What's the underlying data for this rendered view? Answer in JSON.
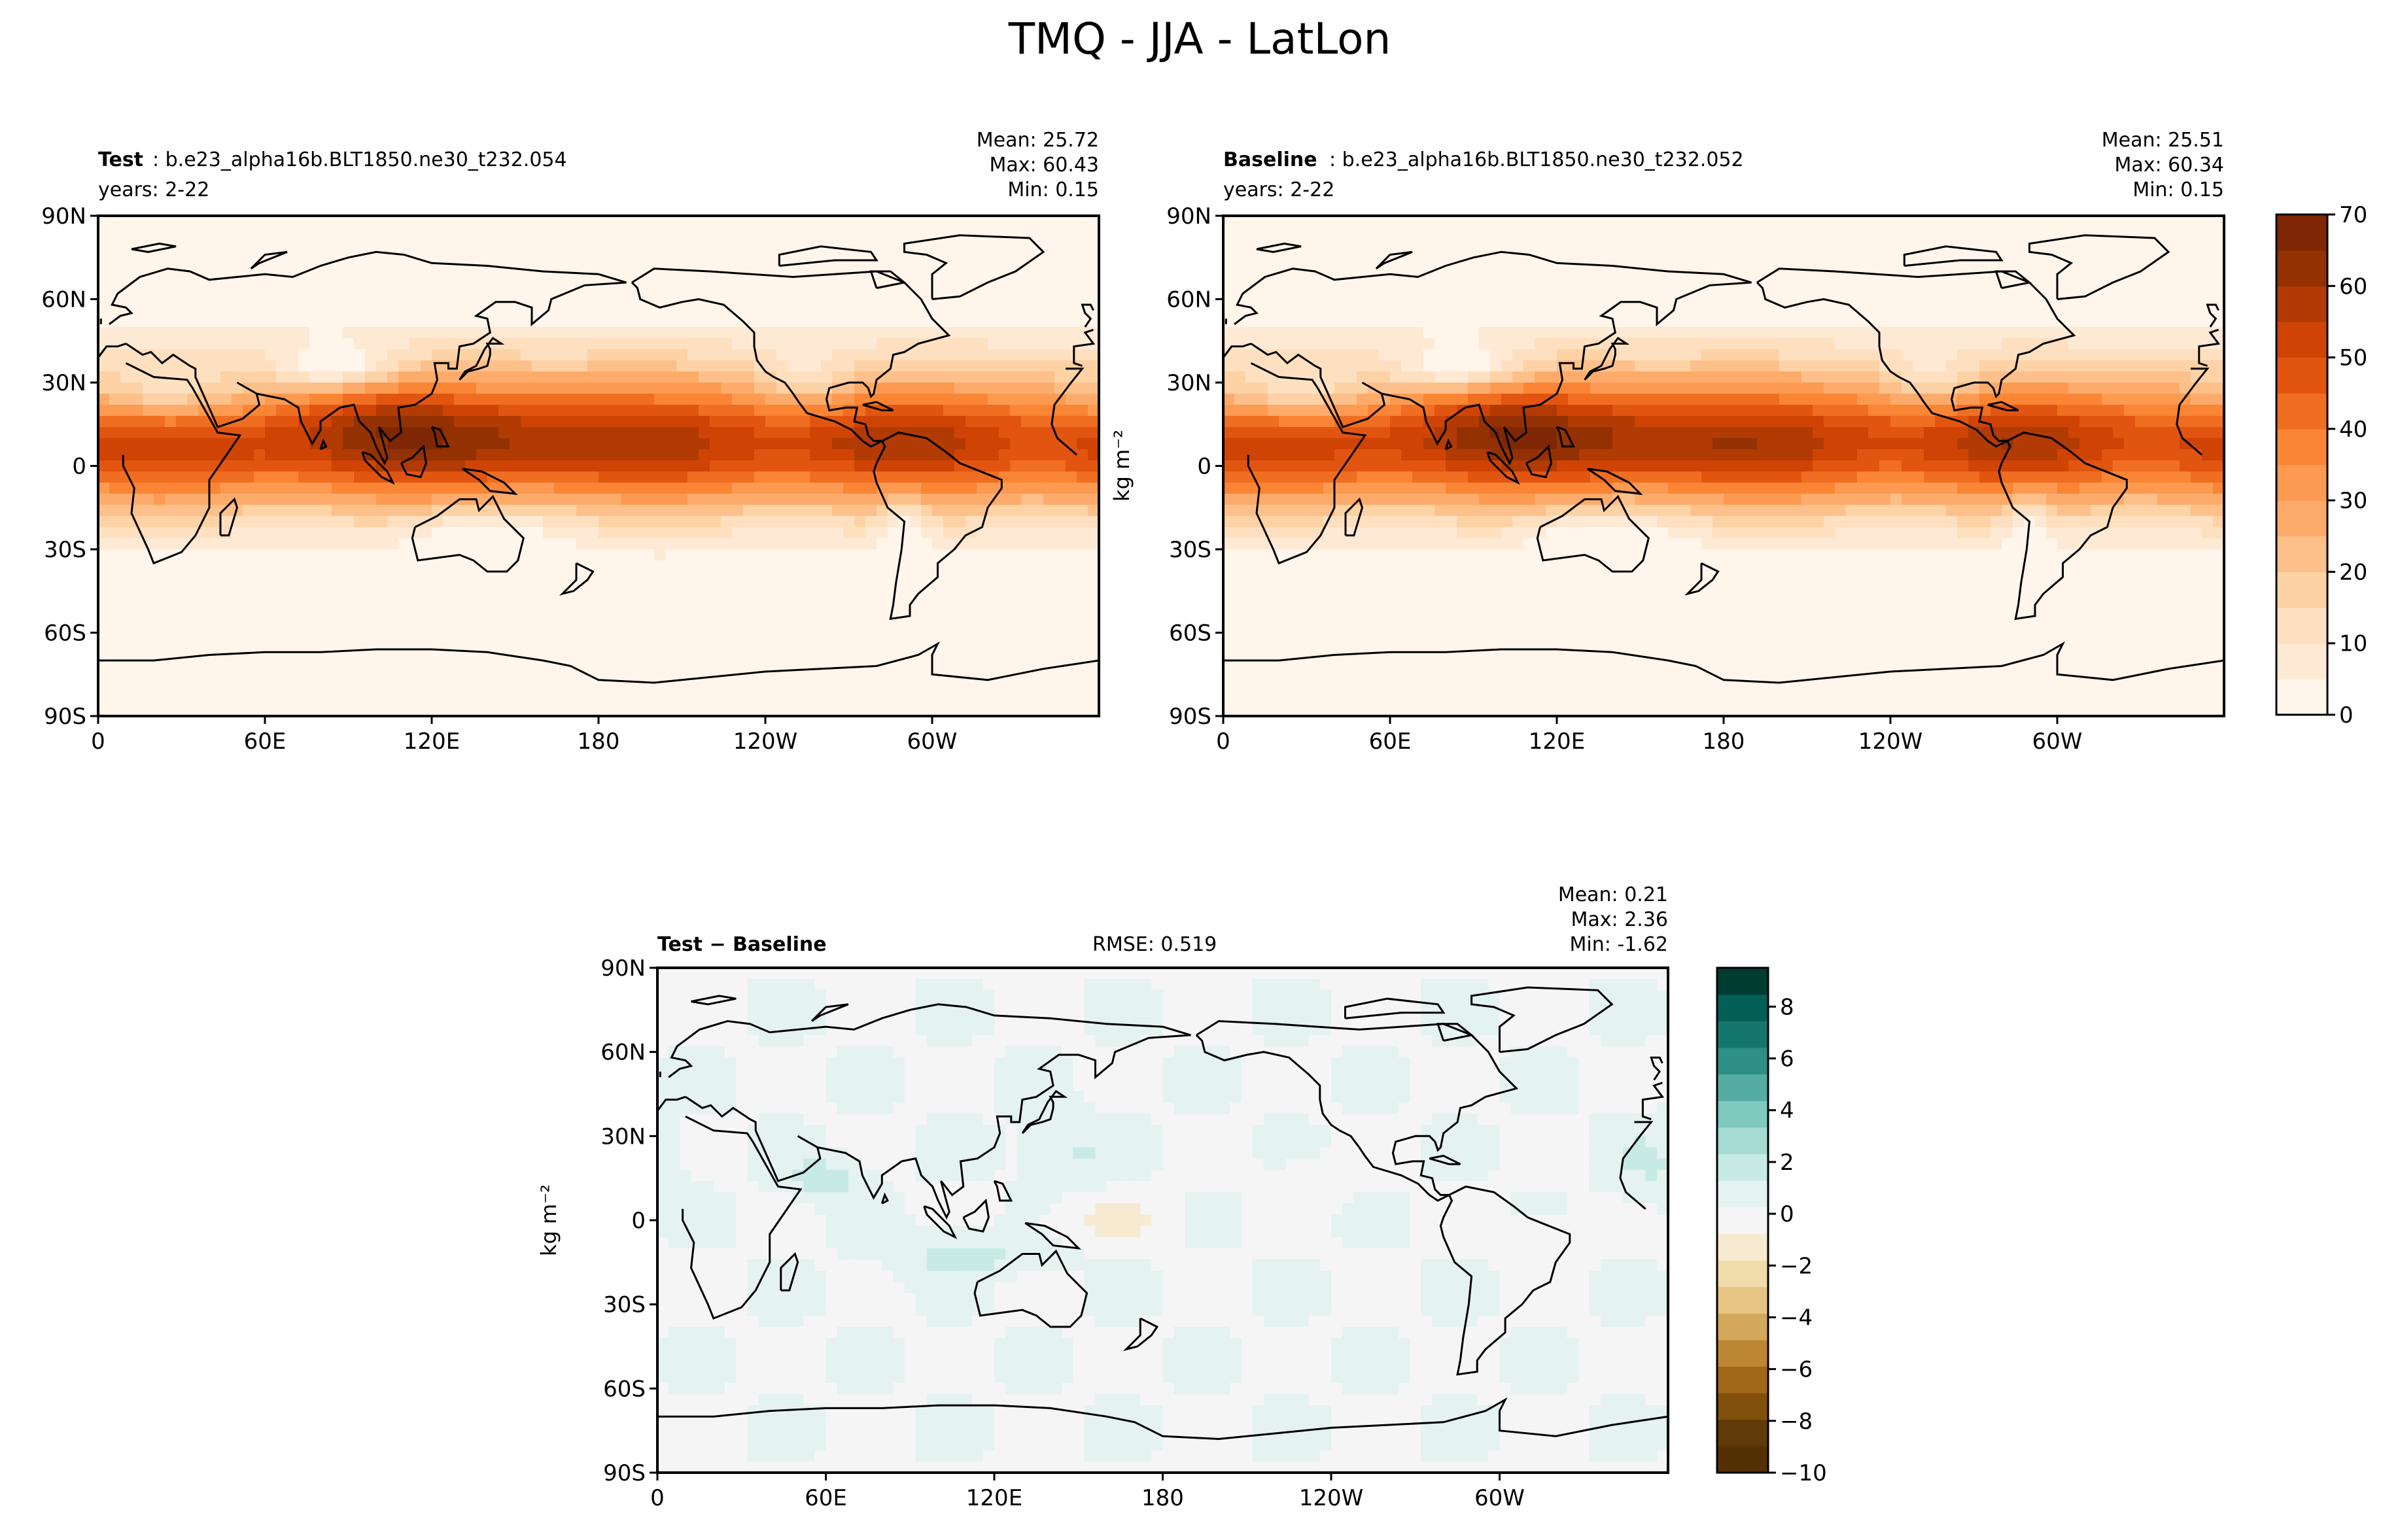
{
  "figure": {
    "title": "TMQ - JJA - LatLon"
  },
  "colors": {
    "seq_oranges": [
      "#fff5eb",
      "#fee9d4",
      "#fee0c0",
      "#fdd2a5",
      "#fdc08a",
      "#fdab6b",
      "#fd9a51",
      "#f98535",
      "#f06e21",
      "#e25511",
      "#cf4405",
      "#b23a03",
      "#933102",
      "#7f2704"
    ],
    "div_brbg": [
      "#003c30",
      "#045f56",
      "#15766d",
      "#2f8f86",
      "#55aca3",
      "#80c9bf",
      "#a6dbd3",
      "#c7eae5",
      "#e4f2f0",
      "#f5f5f5",
      "#f6ead0",
      "#f0dcaa",
      "#e6c582",
      "#d3a85b",
      "#bc8633",
      "#a06719",
      "#80500c",
      "#603a09",
      "#543005"
    ],
    "land_line": "#000000"
  },
  "chart_data": [
    {
      "type": "heatmap",
      "panel": "test",
      "label_bold": "Test",
      "label_rest": ": b.e23_alpha16b.BLT1850.ne30_t232.054",
      "years": "years: 2-22",
      "stats": [
        "Mean: 25.72",
        "Max: 60.43",
        "Min:  0.15"
      ],
      "xticks": [
        "0",
        "60E",
        "120E",
        "180",
        "120W",
        "60W"
      ],
      "xtick_values": [
        0,
        60,
        120,
        180,
        240,
        300
      ],
      "yticks": [
        "90N",
        "60N",
        "30N",
        "0",
        "30S",
        "60S",
        "90S"
      ],
      "ytick_values": [
        90,
        60,
        30,
        0,
        -30,
        -60,
        -90
      ],
      "xlim": [
        0,
        360
      ],
      "ylim": [
        -90,
        90
      ],
      "color_levels": [
        0,
        5,
        10,
        15,
        20,
        25,
        30,
        35,
        40,
        45,
        50,
        55,
        60,
        65,
        70
      ]
    },
    {
      "type": "heatmap",
      "panel": "baseline",
      "label_bold": "Baseline",
      "label_rest": ": b.e23_alpha16b.BLT1850.ne30_t232.052",
      "years": "years: 2-22",
      "stats": [
        "Mean: 25.51",
        "Max: 60.34",
        "Min:  0.15"
      ],
      "xticks": [
        "0",
        "60E",
        "120E",
        "180",
        "120W",
        "60W"
      ],
      "xtick_values": [
        0,
        60,
        120,
        180,
        240,
        300
      ],
      "yticks": [
        "90N",
        "60N",
        "30N",
        "0",
        "30S",
        "60S",
        "90S"
      ],
      "ytick_values": [
        90,
        60,
        30,
        0,
        -30,
        -60,
        -90
      ],
      "xlim": [
        0,
        360
      ],
      "ylim": [
        -90,
        90
      ],
      "colorbar": {
        "ticks": [
          "0",
          "10",
          "20",
          "30",
          "40",
          "50",
          "60",
          "70"
        ],
        "tick_values": [
          0,
          10,
          20,
          30,
          40,
          50,
          60,
          70
        ],
        "label": "kg m⁻²",
        "range": [
          0,
          70
        ]
      }
    },
    {
      "type": "heatmap",
      "panel": "diff",
      "label_bold": "Test − Baseline",
      "rmse": "RMSE: 0.519",
      "stats": [
        "Mean:  0.21",
        "Max:  2.36",
        "Min: -1.62"
      ],
      "ylabel": "kg m⁻²",
      "xticks": [
        "0",
        "60E",
        "120E",
        "180",
        "120W",
        "60W"
      ],
      "xtick_values": [
        0,
        60,
        120,
        180,
        240,
        300
      ],
      "yticks": [
        "90N",
        "60N",
        "30N",
        "0",
        "30S",
        "60S",
        "90S"
      ],
      "ytick_values": [
        90,
        60,
        30,
        0,
        -30,
        -60,
        -90
      ],
      "xlim": [
        0,
        360
      ],
      "ylim": [
        -90,
        90
      ],
      "colorbar": {
        "ticks": [
          "8",
          "6",
          "4",
          "2",
          "0",
          "−2",
          "−4",
          "−6",
          "−8",
          "−10"
        ],
        "tick_values": [
          8,
          6,
          4,
          2,
          0,
          -2,
          -4,
          -6,
          -8,
          -10
        ],
        "range": [
          -10,
          9.5
        ]
      }
    }
  ]
}
